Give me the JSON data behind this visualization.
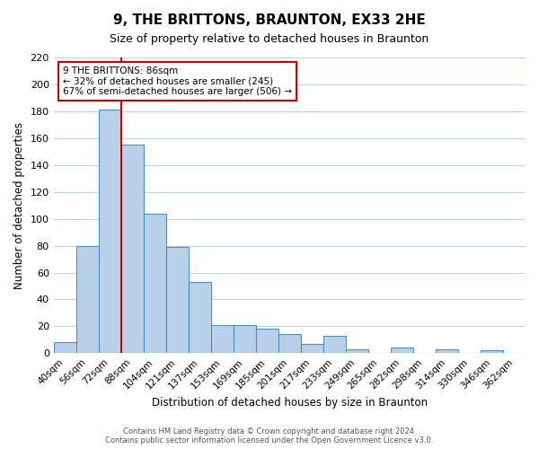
{
  "title": "9, THE BRITTONS, BRAUNTON, EX33 2HE",
  "subtitle": "Size of property relative to detached houses in Braunton",
  "xlabel": "Distribution of detached houses by size in Braunton",
  "ylabel": "Number of detached properties",
  "bar_labels": [
    "40sqm",
    "56sqm",
    "72sqm",
    "88sqm",
    "104sqm",
    "121sqm",
    "137sqm",
    "153sqm",
    "169sqm",
    "185sqm",
    "201sqm",
    "217sqm",
    "233sqm",
    "249sqm",
    "265sqm",
    "282sqm",
    "298sqm",
    "314sqm",
    "330sqm",
    "346sqm",
    "362sqm"
  ],
  "bar_values": [
    8,
    80,
    181,
    155,
    104,
    79,
    53,
    21,
    21,
    18,
    14,
    7,
    13,
    3,
    0,
    4,
    0,
    3,
    0,
    2,
    0
  ],
  "bar_color": "#b8d0e8",
  "bar_edge_color": "#4a90c4",
  "vline_x": 2.5,
  "vline_color": "#cc0000",
  "ylim": [
    0,
    220
  ],
  "yticks": [
    0,
    20,
    40,
    60,
    80,
    100,
    120,
    140,
    160,
    180,
    200,
    220
  ],
  "annotation_title": "9 THE BRITTONS: 86sqm",
  "annotation_line1": "← 32% of detached houses are smaller (245)",
  "annotation_line2": "67% of semi-detached houses are larger (506) →",
  "annotation_box_color": "#ffffff",
  "annotation_box_edge": "#cc0000",
  "footer1": "Contains HM Land Registry data © Crown copyright and database right 2024.",
  "footer2": "Contains public sector information licensed under the Open Government Licence v3.0.",
  "bg_color": "#ffffff",
  "grid_color": "#c0d0e0"
}
